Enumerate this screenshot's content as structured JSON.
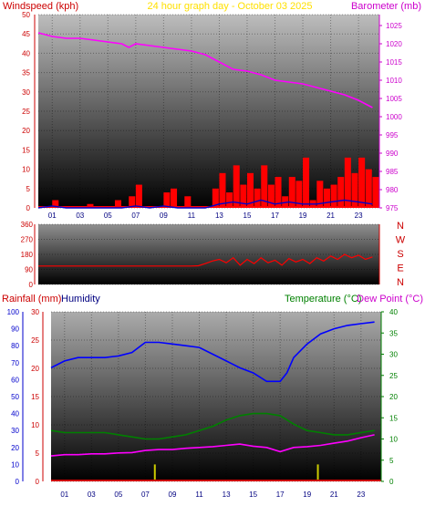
{
  "chart_data": [
    {
      "type": "line",
      "title": "24 hour graph day - October 03 2025",
      "left_axis_label": "Windspeed (kph)",
      "right_axis_label": "Barometer (mb)",
      "x_ticks": [
        "01",
        "03",
        "05",
        "07",
        "09",
        "11",
        "13",
        "15",
        "17",
        "19",
        "21",
        "23"
      ],
      "x_range": [
        0,
        24.5
      ],
      "y_left_range": [
        0,
        50
      ],
      "y_left_ticks": [
        0,
        5,
        10,
        15,
        20,
        25,
        30,
        35,
        40,
        45,
        50
      ],
      "y_right_range": [
        975,
        1028
      ],
      "y_right_ticks": [
        975,
        980,
        985,
        990,
        995,
        1000,
        1005,
        1010,
        1015,
        1020,
        1025
      ],
      "grid": true,
      "series": [
        {
          "role": "wind_gust",
          "color": "#ff0000",
          "axis": "left",
          "x": [
            0,
            0.5,
            1,
            1.5,
            2,
            2.5,
            3,
            3.5,
            4,
            4.5,
            5,
            5.5,
            6,
            6.5,
            7,
            7.5,
            8,
            8.5,
            9,
            9.5,
            10,
            10.5,
            11,
            11.5,
            12,
            12.5,
            13,
            13.5,
            14,
            14.5,
            15,
            15.5,
            16,
            16.5,
            17,
            17.5,
            18,
            18.5,
            19,
            19.5,
            20,
            20.5,
            21,
            21.5,
            22,
            22.5,
            23,
            23.5,
            24
          ],
          "values": [
            0,
            0,
            2,
            0,
            0,
            0,
            0,
            1,
            0,
            0,
            0,
            2,
            0,
            3,
            6,
            0,
            0,
            0,
            4,
            5,
            0,
            3,
            0,
            0,
            0,
            5,
            9,
            4,
            11,
            6,
            9,
            5,
            11,
            6,
            8,
            3,
            8,
            7,
            13,
            2,
            7,
            5,
            6,
            8,
            13,
            9,
            13,
            10,
            8
          ]
        },
        {
          "role": "wind_average",
          "color": "#0000cc",
          "axis": "left",
          "x": [
            0,
            1,
            2,
            3,
            4,
            5,
            6,
            7,
            8,
            9,
            10,
            11,
            12,
            13,
            14,
            15,
            16,
            17,
            18,
            19,
            20,
            21,
            22,
            23,
            24
          ],
          "values": [
            0,
            0.5,
            0,
            0,
            0,
            0,
            0,
            0.5,
            0,
            0.5,
            0,
            0,
            0,
            1,
            1.5,
            1,
            2,
            1,
            1.5,
            1,
            1,
            1.5,
            2,
            1.5,
            1
          ]
        },
        {
          "role": "barometer",
          "color": "#ff00ff",
          "axis": "right",
          "x": [
            0,
            1,
            2,
            3,
            4,
            5,
            6,
            6.5,
            7,
            8,
            9,
            10,
            11,
            12,
            13,
            14,
            15,
            16,
            17,
            18,
            19,
            20,
            21,
            22,
            23,
            24
          ],
          "values": [
            1023,
            1022,
            1021.5,
            1021.5,
            1021,
            1020.5,
            1020,
            1019,
            1020,
            1019.5,
            1019,
            1018.5,
            1018,
            1017,
            1015,
            1013,
            1012.5,
            1011.5,
            1010,
            1009.5,
            1009,
            1008,
            1007,
            1006,
            1004.5,
            1002.5
          ]
        }
      ]
    },
    {
      "type": "line",
      "title": "",
      "y_ticks": [
        0,
        90,
        180,
        270,
        360
      ],
      "y_range": [
        0,
        360
      ],
      "compass_labels": [
        "N",
        "W",
        "S",
        "E",
        "N"
      ],
      "x_range": [
        0,
        24.5
      ],
      "series": [
        {
          "role": "wind_direction",
          "color": "#ff0000",
          "x": [
            0,
            1,
            2,
            3,
            4,
            5,
            6,
            7,
            8,
            9,
            10,
            11,
            11.5,
            12,
            12.5,
            13,
            13.5,
            14,
            14.5,
            15,
            15.5,
            16,
            16.5,
            17,
            17.5,
            18,
            18.5,
            19,
            19.5,
            20,
            20.5,
            21,
            21.5,
            22,
            22.5,
            23,
            23.5,
            24
          ],
          "values": [
            110,
            110,
            110,
            110,
            110,
            110,
            110,
            110,
            110,
            110,
            110,
            110,
            112,
            125,
            140,
            150,
            130,
            160,
            115,
            150,
            125,
            160,
            130,
            145,
            115,
            155,
            135,
            150,
            125,
            160,
            140,
            170,
            150,
            180,
            160,
            175,
            150,
            165
          ]
        }
      ]
    },
    {
      "type": "line",
      "title": "",
      "left_labels": [
        "Rainfall (mm)",
        "Humidity"
      ],
      "right_labels": [
        "Temperature (°C)",
        "Dew Point (°C)"
      ],
      "x_ticks": [
        "01",
        "03",
        "05",
        "07",
        "09",
        "11",
        "13",
        "15",
        "17",
        "19",
        "21",
        "23"
      ],
      "x_range": [
        0,
        24.5
      ],
      "humidity_ticks": [
        0,
        10,
        20,
        30,
        40,
        50,
        60,
        70,
        80,
        90,
        100
      ],
      "humidity_range": [
        0,
        100
      ],
      "rain_ticks": [
        0,
        5,
        10,
        15,
        20,
        25,
        30
      ],
      "rain_range": [
        0,
        30
      ],
      "temp_ticks": [
        0,
        5,
        10,
        15,
        20,
        25,
        30,
        35,
        40
      ],
      "temp_range": [
        0,
        40
      ],
      "series": [
        {
          "role": "humidity",
          "color": "#0000ff",
          "axis": "humidity",
          "x": [
            0,
            1,
            2,
            3,
            4,
            5,
            6,
            7,
            8,
            9,
            10,
            11,
            12,
            13,
            14,
            15,
            16,
            16.5,
            17,
            17.5,
            18,
            19,
            20,
            21,
            22,
            23,
            24
          ],
          "values": [
            67,
            71,
            73,
            73,
            73,
            74,
            76,
            82,
            82,
            81,
            80,
            79,
            75,
            71,
            67,
            64,
            59,
            59,
            59,
            64,
            73,
            81,
            87,
            90,
            92,
            93,
            94
          ]
        },
        {
          "role": "temperature",
          "color": "#008000",
          "axis": "temp",
          "x": [
            0,
            1,
            2,
            3,
            4,
            5,
            6,
            7,
            8,
            9,
            10,
            11,
            12,
            13,
            14,
            15,
            16,
            17,
            18,
            19,
            20,
            21,
            22,
            23,
            24
          ],
          "values": [
            12,
            11.5,
            11.5,
            11.5,
            11.5,
            11,
            10.5,
            10,
            10,
            10.5,
            11,
            12,
            13,
            14.5,
            15.5,
            16,
            16,
            15.5,
            13.5,
            12,
            11.5,
            11,
            11,
            11.5,
            12
          ]
        },
        {
          "role": "dew_point",
          "color": "#ff00ff",
          "axis": "temp",
          "x": [
            0,
            1,
            2,
            3,
            4,
            5,
            6,
            7,
            8,
            9,
            10,
            11,
            12,
            13,
            14,
            15,
            16,
            17,
            18,
            19,
            20,
            21,
            22,
            23,
            24
          ],
          "values": [
            6,
            6.3,
            6.3,
            6.5,
            6.5,
            6.7,
            6.8,
            7.3,
            7.5,
            7.5,
            7.8,
            8,
            8.2,
            8.5,
            8.8,
            8.3,
            8,
            7,
            8,
            8.2,
            8.5,
            9,
            9.5,
            10.3,
            11
          ]
        },
        {
          "role": "rainfall",
          "color": "#cccc00",
          "axis": "rain",
          "x": [
            7.7,
            19.8
          ],
          "values": [
            3,
            3
          ]
        }
      ]
    }
  ]
}
